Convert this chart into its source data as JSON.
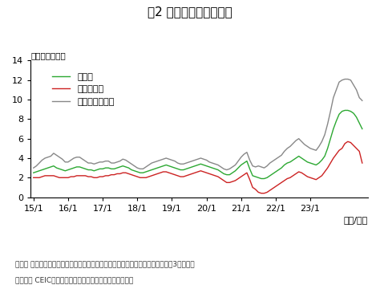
{
  "title": "図2 新興国のインフレ率",
  "ylabel": "（前年比、％）",
  "xlabel": "（年/月）",
  "note1": "（注） インフレ率は、各国のインフレ率を単純平均したものを表示。対象国は図3を参照。",
  "note2": "（出所） CEICデータより野村アセットマネジメント作成",
  "legend": [
    "新興国",
    "内、アジア",
    "内、アジア以外"
  ],
  "colors": [
    "#2ca832",
    "#cc2222",
    "#888888"
  ],
  "ylim": [
    0,
    14
  ],
  "yticks": [
    0,
    2,
    4,
    6,
    8,
    10,
    12,
    14
  ],
  "xtick_labels": [
    "15/1",
    "16/1",
    "17/1",
    "18/1",
    "19/1",
    "20/1",
    "21/1",
    "22/1",
    "23/1"
  ],
  "background_color": "#ffffff",
  "emerging": [
    2.5,
    2.6,
    2.7,
    2.8,
    2.9,
    3.0,
    3.1,
    3.2,
    3.0,
    2.9,
    2.8,
    2.7,
    2.8,
    2.9,
    3.0,
    3.1,
    3.1,
    3.0,
    2.9,
    2.8,
    2.8,
    2.7,
    2.8,
    2.9,
    2.9,
    3.0,
    3.0,
    2.9,
    2.9,
    3.0,
    3.1,
    3.2,
    3.1,
    3.0,
    2.8,
    2.7,
    2.6,
    2.5,
    2.5,
    2.6,
    2.7,
    2.8,
    2.9,
    3.0,
    3.1,
    3.2,
    3.3,
    3.2,
    3.1,
    3.0,
    2.9,
    2.8,
    2.8,
    2.9,
    3.0,
    3.1,
    3.2,
    3.3,
    3.4,
    3.3,
    3.2,
    3.1,
    3.0,
    2.9,
    2.8,
    2.6,
    2.4,
    2.3,
    2.3,
    2.5,
    2.7,
    3.0,
    3.3,
    3.5,
    3.7,
    2.9,
    2.2,
    2.1,
    2.0,
    1.9,
    1.9,
    2.0,
    2.2,
    2.4,
    2.6,
    2.8,
    3.0,
    3.3,
    3.5,
    3.6,
    3.8,
    4.0,
    4.2,
    4.0,
    3.8,
    3.6,
    3.5,
    3.4,
    3.3,
    3.5,
    3.8,
    4.2,
    5.0,
    6.0,
    7.0,
    7.8,
    8.5,
    8.8,
    8.9,
    8.9,
    8.8,
    8.6,
    8.2,
    7.6,
    7.0
  ],
  "asia": [
    2.0,
    2.0,
    2.0,
    2.1,
    2.2,
    2.2,
    2.2,
    2.2,
    2.1,
    2.0,
    2.0,
    2.0,
    2.0,
    2.1,
    2.1,
    2.2,
    2.2,
    2.2,
    2.2,
    2.1,
    2.1,
    2.0,
    2.0,
    2.1,
    2.1,
    2.2,
    2.2,
    2.3,
    2.3,
    2.4,
    2.4,
    2.5,
    2.5,
    2.4,
    2.3,
    2.2,
    2.1,
    2.0,
    2.0,
    2.0,
    2.1,
    2.2,
    2.3,
    2.4,
    2.5,
    2.6,
    2.6,
    2.5,
    2.4,
    2.3,
    2.2,
    2.1,
    2.1,
    2.2,
    2.3,
    2.4,
    2.5,
    2.6,
    2.7,
    2.6,
    2.5,
    2.4,
    2.3,
    2.2,
    2.1,
    1.9,
    1.7,
    1.5,
    1.5,
    1.6,
    1.7,
    1.9,
    2.1,
    2.3,
    2.5,
    1.8,
    1.0,
    0.8,
    0.5,
    0.4,
    0.4,
    0.5,
    0.7,
    0.9,
    1.1,
    1.3,
    1.5,
    1.7,
    1.9,
    2.0,
    2.2,
    2.4,
    2.6,
    2.5,
    2.3,
    2.1,
    2.0,
    1.9,
    1.8,
    2.0,
    2.2,
    2.6,
    3.0,
    3.5,
    4.0,
    4.4,
    4.8,
    5.0,
    5.5,
    5.7,
    5.6,
    5.3,
    5.0,
    4.7,
    3.5
  ],
  "non_asia": [
    3.0,
    3.2,
    3.5,
    3.8,
    4.0,
    4.1,
    4.2,
    4.5,
    4.3,
    4.1,
    3.9,
    3.6,
    3.6,
    3.8,
    4.0,
    4.1,
    4.1,
    3.9,
    3.7,
    3.5,
    3.5,
    3.4,
    3.5,
    3.6,
    3.6,
    3.7,
    3.7,
    3.5,
    3.5,
    3.6,
    3.7,
    3.9,
    3.8,
    3.6,
    3.4,
    3.2,
    3.0,
    2.9,
    2.9,
    3.1,
    3.3,
    3.5,
    3.6,
    3.7,
    3.8,
    3.9,
    4.0,
    3.9,
    3.8,
    3.7,
    3.5,
    3.4,
    3.4,
    3.5,
    3.6,
    3.7,
    3.8,
    3.9,
    4.0,
    3.9,
    3.8,
    3.6,
    3.5,
    3.4,
    3.3,
    3.1,
    2.9,
    2.8,
    2.9,
    3.1,
    3.3,
    3.7,
    4.1,
    4.4,
    4.6,
    3.8,
    3.2,
    3.1,
    3.2,
    3.1,
    3.0,
    3.2,
    3.5,
    3.7,
    3.9,
    4.1,
    4.3,
    4.7,
    5.0,
    5.2,
    5.5,
    5.8,
    6.0,
    5.7,
    5.4,
    5.2,
    5.0,
    4.9,
    4.8,
    5.2,
    5.7,
    6.4,
    7.5,
    8.8,
    10.2,
    11.0,
    11.8,
    12.0,
    12.1,
    12.1,
    12.0,
    11.5,
    11.0,
    10.2,
    9.9
  ]
}
